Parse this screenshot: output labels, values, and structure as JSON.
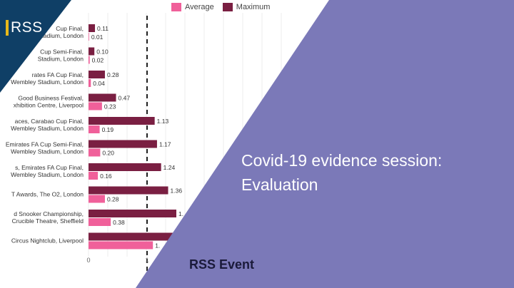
{
  "logo": {
    "text": "RSS"
  },
  "slide": {
    "title_line1": "Covid-19 evidence session:",
    "title_line2": "Evaluation",
    "event_label": "RSS Event"
  },
  "colors": {
    "average": "#f0609a",
    "maximum": "#7a1f42",
    "purple": "#7b79b8",
    "navy": "#0f3f66",
    "accent": "#e8b91a"
  },
  "chart_data": {
    "type": "bar",
    "orientation": "horizontal",
    "categories": [
      [
        "Cup Final,",
        "Stadium, London"
      ],
      [
        "Cup Semi-Final,",
        "Stadium, London"
      ],
      [
        "rates FA Cup Final,",
        "Wembley Stadium, London"
      ],
      [
        "Good Business Festival,",
        "xhibition Centre, Liverpool"
      ],
      [
        "aces, Carabao Cup Final,",
        "Wembley Stadium, London"
      ],
      [
        "Emirates FA Cup Semi-Final,",
        "Wembley Stadium, London"
      ],
      [
        "s, Emirates FA Cup Final,",
        "Wembley Stadium, London"
      ],
      [
        "T Awards, The O2, London"
      ],
      [
        "d Snooker Championship,",
        "Crucible Theatre, Sheffield"
      ],
      [
        "Circus Nightclub, Liverpool"
      ]
    ],
    "series": [
      {
        "name": "Maximum",
        "values": [
          0.11,
          0.1,
          0.28,
          0.47,
          1.13,
          1.17,
          1.24,
          1.36,
          1.5,
          1.6
        ],
        "labels": [
          "0.11",
          "0.10",
          "0.28",
          "0.47",
          "1.13",
          "1.17",
          "1.24",
          "1.36",
          "1.",
          ""
        ]
      },
      {
        "name": "Average",
        "values": [
          0.01,
          0.02,
          0.04,
          0.23,
          0.19,
          0.2,
          0.16,
          0.28,
          0.38,
          1.1
        ],
        "labels": [
          "0.01",
          "0.02",
          "0.04",
          "0.23",
          "0.19",
          "0.20",
          "0.16",
          "0.28",
          "0.38",
          "1."
        ]
      }
    ],
    "x_tick_labels": [
      "0",
      "1"
    ],
    "xlim": [
      0,
      2.0
    ],
    "reference_line": 1.0,
    "legend_position": "top"
  }
}
